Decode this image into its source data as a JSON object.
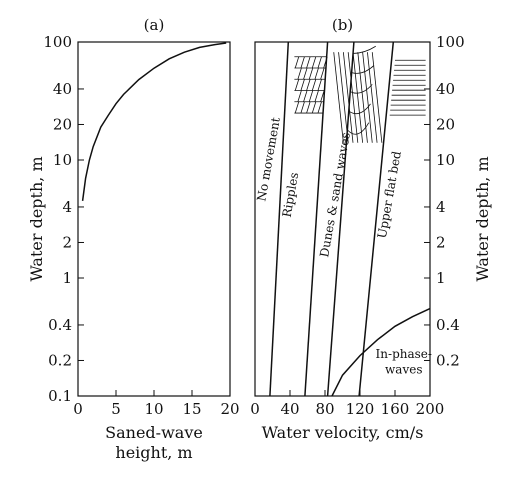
{
  "chart_data": [
    {
      "type": "line",
      "panel_label": "(a)",
      "xlabel_line1": "Saned-wave",
      "xlabel_line2": "height, m",
      "ylabel": "Water depth, m",
      "xlim": [
        0,
        20
      ],
      "ylim": [
        0.1,
        100
      ],
      "y_scale": "log",
      "x_ticks": [
        "0",
        "5",
        "10",
        "15",
        "20"
      ],
      "y_ticks": [
        "0.1",
        "0.2",
        "0.4",
        "1",
        "2",
        "4",
        "10",
        "20",
        "40",
        "100"
      ],
      "series": [
        {
          "x": [
            0.6,
            1.0,
            1.5,
            2.0,
            3.0,
            4.0,
            5.0,
            6.0,
            8.0,
            10.0,
            12.0,
            14.0,
            16.0,
            18.0,
            19.5
          ],
          "y": [
            4.5,
            7.0,
            10.0,
            13.0,
            19.0,
            24.0,
            30.0,
            36.0,
            48.0,
            60.0,
            72.0,
            82.0,
            90.0,
            95.0,
            98.0
          ]
        }
      ]
    },
    {
      "type": "line",
      "panel_label": "(b)",
      "xlabel": "Water velocity, cm/s",
      "ylabel": "Water depth, m",
      "xlim": [
        0,
        200
      ],
      "ylim": [
        0.1,
        100
      ],
      "y_scale": "log",
      "x_ticks": [
        "0",
        "40",
        "80",
        "120",
        "160",
        "200"
      ],
      "y_ticks_right": [
        "0.2",
        "0.4",
        "1",
        "2",
        "4",
        "10",
        "20",
        "40",
        "100"
      ],
      "boundaries": [
        {
          "x": [
            17,
            38
          ],
          "y": [
            0.1,
            100
          ]
        },
        {
          "x": [
            57,
            83
          ],
          "y": [
            0.1,
            100
          ]
        },
        {
          "x": [
            83,
            113
          ],
          "y": [
            0.1,
            100
          ]
        },
        {
          "x": [
            119,
            158
          ],
          "y": [
            0.1,
            100
          ]
        },
        {
          "x": [
            88,
            100,
            120,
            140,
            160,
            180,
            200
          ],
          "y": [
            0.1,
            0.15,
            0.22,
            0.3,
            0.39,
            0.47,
            0.55
          ]
        }
      ],
      "regions": [
        {
          "label": "No movement",
          "x": 20,
          "y": 10,
          "rotate": -80
        },
        {
          "label": "Ripples",
          "x": 45,
          "y": 5,
          "rotate": -80
        },
        {
          "label": "Dunes & sand waves",
          "x": 96,
          "y": 5,
          "rotate": -80
        },
        {
          "label": "Upper flat bed",
          "x": 158,
          "y": 5,
          "rotate": -80
        },
        {
          "label": "In-phase-",
          "x": 170,
          "y": 0.21
        },
        {
          "label": "waves",
          "x": 170,
          "y": 0.155
        }
      ],
      "hatched_zones": [
        {
          "pattern": "brick",
          "x0": 45,
          "x1": 83,
          "y0": 25,
          "y1": 75
        },
        {
          "pattern": "fan",
          "x0": 84,
          "x1": 140,
          "y0": 12,
          "y1": 85
        },
        {
          "pattern": "horizontal",
          "x0": 148,
          "x1": 195,
          "y0": 24,
          "y1": 70
        }
      ]
    }
  ]
}
